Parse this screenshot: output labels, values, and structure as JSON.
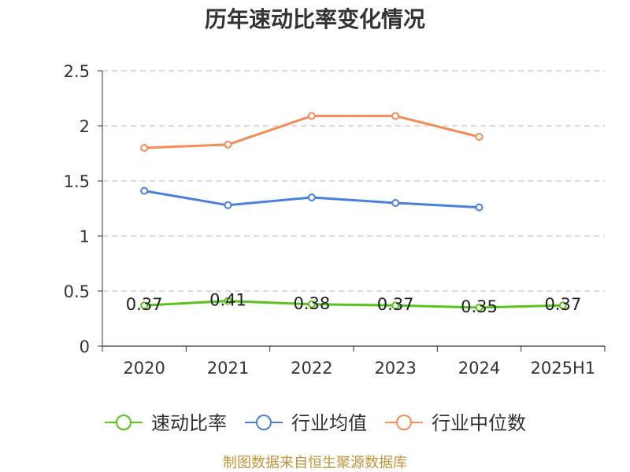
{
  "chart_data": {
    "type": "line",
    "title": "历年速动比率变化情况",
    "categories": [
      "2020",
      "2021",
      "2022",
      "2023",
      "2024",
      "2025H1"
    ],
    "ylim": [
      0,
      2.5
    ],
    "yticks": [
      "0",
      "0.5",
      "1",
      "1.5",
      "2",
      "2.5"
    ],
    "grid": true,
    "legend": "bottom",
    "series": [
      {
        "name": "速动比率",
        "color": "#5bc11d",
        "values": [
          0.37,
          0.41,
          0.38,
          0.37,
          0.35,
          0.37
        ],
        "show_data_labels": true
      },
      {
        "name": "行业均值",
        "color": "#4a80dc",
        "values": [
          1.41,
          1.28,
          1.35,
          1.3,
          1.26,
          null
        ],
        "show_data_labels": false
      },
      {
        "name": "行业中位数",
        "color": "#f58b55",
        "values": [
          1.8,
          1.83,
          2.09,
          2.09,
          1.9,
          null
        ],
        "show_data_labels": false
      }
    ]
  },
  "footer": {
    "source": "制图数据来自恒生聚源数据库",
    "color": "#c0943a"
  }
}
